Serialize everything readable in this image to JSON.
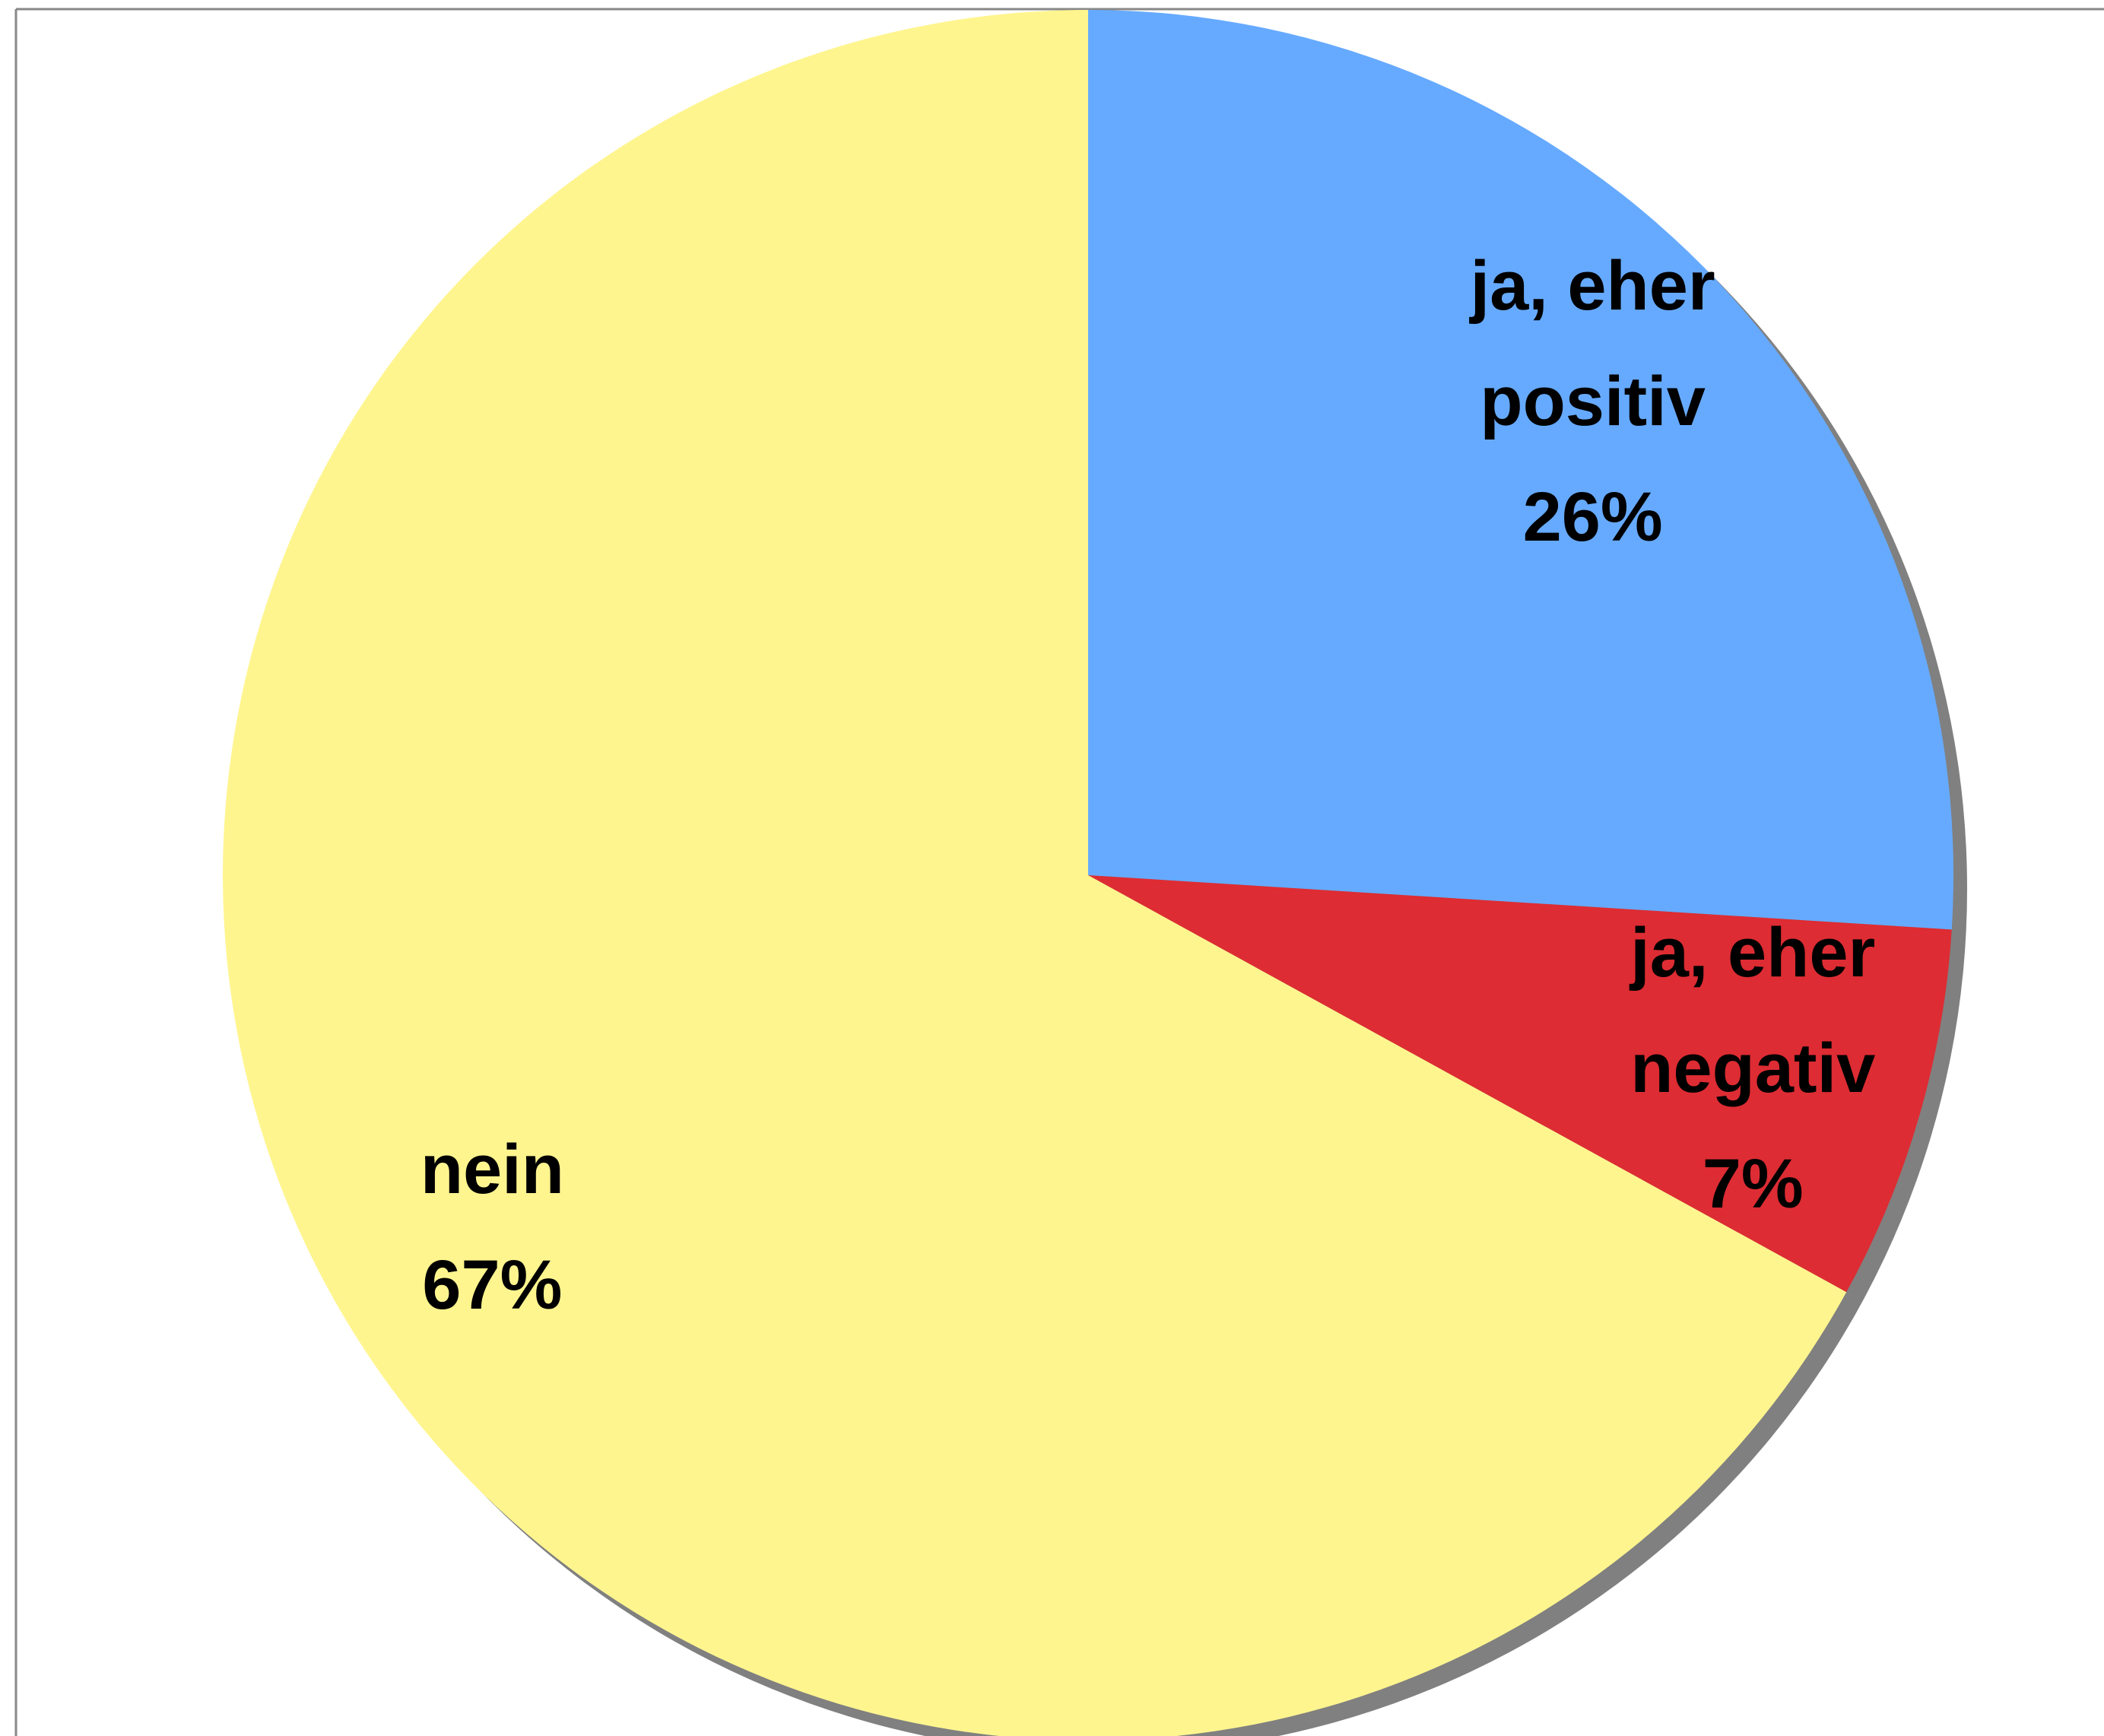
{
  "chart_data": {
    "type": "pie",
    "categories": [
      "ja, eher positiv",
      "ja, eher negativ",
      "nein"
    ],
    "values": [
      26,
      7,
      67
    ],
    "value_labels": [
      "26%",
      "7%",
      "67%"
    ],
    "colors": [
      "#66aaff",
      "#dd2c33",
      "#fff58f"
    ]
  }
}
